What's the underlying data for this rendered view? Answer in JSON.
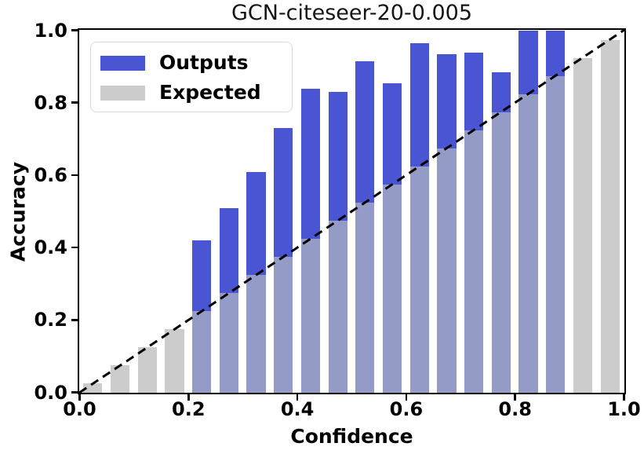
{
  "title": "GCN-citeseer-20-0.005",
  "axes": {
    "x_label": "Confidence",
    "y_label": "Accuracy",
    "x_ticks": [
      "0.0",
      "0.2",
      "0.4",
      "0.6",
      "0.8",
      "1.0"
    ],
    "y_ticks": [
      "0.0",
      "0.2",
      "0.4",
      "0.6",
      "0.8",
      "1.0"
    ]
  },
  "legend": {
    "items": [
      {
        "label": "Outputs",
        "color": "#4a55d4"
      },
      {
        "label": "Expected",
        "color": "#cccccc"
      }
    ]
  },
  "colors": {
    "outputs": "#4a55d4",
    "expected": "#cccccc",
    "overlap": "#949bc6",
    "diagonal": "#000000"
  },
  "chart_data": {
    "type": "bar",
    "title": "GCN-citeseer-20-0.005",
    "xlabel": "Confidence",
    "ylabel": "Accuracy",
    "xlim": [
      0,
      1
    ],
    "ylim": [
      0,
      1
    ],
    "grid": false,
    "legend_position": "upper left",
    "bin_width": 0.05,
    "bar_width_fraction": 0.7,
    "bin_centers": [
      0.025,
      0.075,
      0.125,
      0.175,
      0.225,
      0.275,
      0.325,
      0.375,
      0.425,
      0.475,
      0.525,
      0.575,
      0.625,
      0.675,
      0.725,
      0.775,
      0.825,
      0.875,
      0.925,
      0.975
    ],
    "series": [
      {
        "name": "Outputs",
        "values": [
          null,
          null,
          null,
          null,
          0.42,
          0.51,
          0.61,
          0.73,
          0.84,
          0.83,
          0.915,
          0.855,
          0.965,
          0.935,
          0.94,
          0.885,
          1.0,
          1.0,
          null,
          null
        ]
      },
      {
        "name": "Expected",
        "values": [
          0.025,
          0.075,
          0.125,
          0.175,
          0.225,
          0.275,
          0.325,
          0.375,
          0.425,
          0.475,
          0.525,
          0.575,
          0.625,
          0.675,
          0.725,
          0.775,
          0.825,
          0.875,
          0.925,
          0.975
        ]
      }
    ],
    "diagonal": {
      "from": [
        0,
        0
      ],
      "to": [
        1,
        1
      ],
      "style": "dashed"
    }
  }
}
